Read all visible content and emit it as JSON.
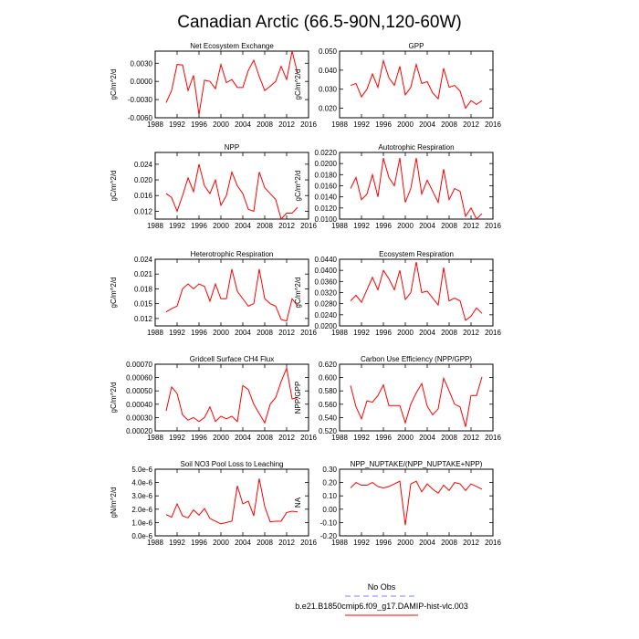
{
  "figure": {
    "title": "Canadian Arctic (66.5-90N,120-60W)"
  },
  "legend": {
    "entries": [
      {
        "label": "No Obs",
        "color": "#8080ff",
        "dash": true
      },
      {
        "label": "b.e21.B1850cmip6.f09_g17.DAMIP-hist-vlc.003",
        "color": "#ff0000",
        "dash": false
      }
    ]
  },
  "chart_data": [
    {
      "type": "line",
      "title": "Net Ecosystem Exchange",
      "ylabel": "gC/m^2/d",
      "xlim": [
        1988,
        2016
      ],
      "ylim": [
        -0.006,
        0.005
      ],
      "xticks": [
        1988,
        1992,
        1996,
        2000,
        2004,
        2008,
        2012,
        2016
      ],
      "yticks": [
        -0.006,
        -0.003,
        0.0,
        0.003
      ],
      "ytick_labels": [
        "-0.0060",
        "-0.0030",
        "0.0000",
        "0.0030"
      ],
      "x": [
        1990,
        1991,
        1992,
        1993,
        1994,
        1995,
        1996,
        1997,
        1998,
        1999,
        2000,
        2001,
        2002,
        2003,
        2004,
        2005,
        2006,
        2007,
        2008,
        2009,
        2010,
        2011,
        2012,
        2013,
        2014
      ],
      "series": [
        {
          "color": "#ff0000",
          "values": [
            -0.0035,
            -0.0015,
            0.0028,
            0.0027,
            -0.0015,
            0.001,
            -0.0055,
            0.0002,
            0.0,
            -0.0012,
            0.0028,
            -0.0002,
            0.0003,
            -0.001,
            -0.001,
            0.0018,
            0.0035,
            0.0008,
            -0.0015,
            -0.0008,
            0.0,
            0.0025,
            0.0003,
            0.005,
            0.0013
          ]
        }
      ]
    },
    {
      "type": "line",
      "title": "GPP",
      "ylabel": "gC/m^2/d",
      "xlim": [
        1988,
        2016
      ],
      "ylim": [
        0.015,
        0.05
      ],
      "xticks": [
        1988,
        1992,
        1996,
        2000,
        2004,
        2008,
        2012,
        2016
      ],
      "yticks": [
        0.02,
        0.03,
        0.04,
        0.05
      ],
      "ytick_labels": [
        "0.020",
        "0.030",
        "0.040",
        "0.050"
      ],
      "x": [
        1990,
        1991,
        1992,
        1993,
        1994,
        1995,
        1996,
        1997,
        1998,
        1999,
        2000,
        2001,
        2002,
        2003,
        2004,
        2005,
        2006,
        2007,
        2008,
        2009,
        2010,
        2011,
        2012,
        2013,
        2014
      ],
      "series": [
        {
          "color": "#ff0000",
          "values": [
            0.032,
            0.033,
            0.026,
            0.03,
            0.038,
            0.031,
            0.045,
            0.036,
            0.032,
            0.042,
            0.027,
            0.031,
            0.043,
            0.033,
            0.034,
            0.028,
            0.025,
            0.041,
            0.031,
            0.032,
            0.029,
            0.02,
            0.024,
            0.022,
            0.024
          ]
        }
      ]
    },
    {
      "type": "line",
      "title": "NPP",
      "ylabel": "gC/m^2/d",
      "xlim": [
        1988,
        2016
      ],
      "ylim": [
        0.01,
        0.027
      ],
      "xticks": [
        1988,
        1992,
        1996,
        2000,
        2004,
        2008,
        2012,
        2016
      ],
      "yticks": [
        0.012,
        0.016,
        0.02,
        0.024
      ],
      "ytick_labels": [
        "0.012",
        "0.016",
        "0.020",
        "0.024"
      ],
      "x": [
        1990,
        1991,
        1992,
        1993,
        1994,
        1995,
        1996,
        1997,
        1998,
        1999,
        2000,
        2001,
        2002,
        2003,
        2004,
        2005,
        2006,
        2007,
        2008,
        2009,
        2010,
        2011,
        2012,
        2013,
        2014
      ],
      "series": [
        {
          "color": "#ff0000",
          "values": [
            0.0165,
            0.0155,
            0.012,
            0.016,
            0.0205,
            0.017,
            0.024,
            0.0185,
            0.0165,
            0.02,
            0.0135,
            0.016,
            0.022,
            0.0185,
            0.0165,
            0.0125,
            0.012,
            0.022,
            0.018,
            0.0165,
            0.015,
            0.01,
            0.0115,
            0.0115,
            0.013
          ]
        }
      ]
    },
    {
      "type": "line",
      "title": "Autotrophic Respiration",
      "ylabel": "gC/m^2/d",
      "xlim": [
        1988,
        2016
      ],
      "ylim": [
        0.01,
        0.022
      ],
      "xticks": [
        1988,
        1992,
        1996,
        2000,
        2004,
        2008,
        2012,
        2016
      ],
      "yticks": [
        0.01,
        0.012,
        0.014,
        0.016,
        0.018,
        0.02,
        0.022
      ],
      "ytick_labels": [
        "0.0100",
        "0.0120",
        "0.0140",
        "0.0160",
        "0.0180",
        "0.0200",
        "0.0220"
      ],
      "x": [
        1990,
        1991,
        1992,
        1993,
        1994,
        1995,
        1996,
        1997,
        1998,
        1999,
        2000,
        2001,
        2002,
        2003,
        2004,
        2005,
        2006,
        2007,
        2008,
        2009,
        2010,
        2011,
        2012,
        2013,
        2014
      ],
      "series": [
        {
          "color": "#ff0000",
          "values": [
            0.0155,
            0.0175,
            0.0135,
            0.0145,
            0.018,
            0.014,
            0.021,
            0.0175,
            0.016,
            0.021,
            0.013,
            0.0155,
            0.021,
            0.0145,
            0.017,
            0.015,
            0.013,
            0.019,
            0.0135,
            0.0155,
            0.015,
            0.0105,
            0.012,
            0.01,
            0.011
          ]
        }
      ]
    },
    {
      "type": "line",
      "title": "Heterotrophic Respiration",
      "ylabel": "gC/m^2/d",
      "xlim": [
        1988,
        2016
      ],
      "ylim": [
        0.0105,
        0.024
      ],
      "xticks": [
        1988,
        1992,
        1996,
        2000,
        2004,
        2008,
        2012,
        2016
      ],
      "yticks": [
        0.012,
        0.015,
        0.018,
        0.021,
        0.024
      ],
      "ytick_labels": [
        "0.012",
        "0.015",
        "0.018",
        "0.021",
        "0.024"
      ],
      "x": [
        1990,
        1991,
        1992,
        1993,
        1994,
        1995,
        1996,
        1997,
        1998,
        1999,
        2000,
        2001,
        2002,
        2003,
        2004,
        2005,
        2006,
        2007,
        2008,
        2009,
        2010,
        2011,
        2012,
        2013,
        2014
      ],
      "series": [
        {
          "color": "#ff0000",
          "values": [
            0.0133,
            0.014,
            0.0145,
            0.018,
            0.019,
            0.018,
            0.019,
            0.0185,
            0.0155,
            0.019,
            0.016,
            0.016,
            0.022,
            0.0175,
            0.016,
            0.0145,
            0.015,
            0.022,
            0.016,
            0.015,
            0.0145,
            0.0118,
            0.0115,
            0.016,
            0.0145
          ]
        }
      ]
    },
    {
      "type": "line",
      "title": "Ecosystem Respiration",
      "ylabel": "gC/m^2/d",
      "xlim": [
        1988,
        2016
      ],
      "ylim": [
        0.02,
        0.044
      ],
      "xticks": [
        1988,
        1992,
        1996,
        2000,
        2004,
        2008,
        2012,
        2016
      ],
      "yticks": [
        0.02,
        0.024,
        0.028,
        0.032,
        0.036,
        0.04,
        0.044
      ],
      "ytick_labels": [
        "0.0200",
        "0.0240",
        "0.0280",
        "0.0320",
        "0.0360",
        "0.0400",
        "0.0440"
      ],
      "x": [
        1990,
        1991,
        1992,
        1993,
        1994,
        1995,
        1996,
        1997,
        1998,
        1999,
        2000,
        2001,
        2002,
        2003,
        2004,
        2005,
        2006,
        2007,
        2008,
        2009,
        2010,
        2011,
        2012,
        2013,
        2014
      ],
      "series": [
        {
          "color": "#ff0000",
          "values": [
            0.029,
            0.031,
            0.0285,
            0.033,
            0.0375,
            0.033,
            0.04,
            0.037,
            0.033,
            0.04,
            0.0295,
            0.032,
            0.043,
            0.032,
            0.0325,
            0.03,
            0.0275,
            0.041,
            0.029,
            0.03,
            0.029,
            0.022,
            0.0235,
            0.0265,
            0.0245
          ]
        }
      ]
    },
    {
      "type": "line",
      "title": "Gridcell Surface CH4 Flux",
      "ylabel": "gC/m^2/d",
      "xlim": [
        1988,
        2016
      ],
      "ylim": [
        0.0002,
        0.0007
      ],
      "xticks": [
        1988,
        1992,
        1996,
        2000,
        2004,
        2008,
        2012,
        2016
      ],
      "yticks": [
        0.0002,
        0.0003,
        0.0004,
        0.0005,
        0.0006,
        0.0007
      ],
      "ytick_labels": [
        "0.00020",
        "0.00030",
        "0.00040",
        "0.00050",
        "0.00060",
        "0.00070"
      ],
      "x": [
        1990,
        1991,
        1992,
        1993,
        1994,
        1995,
        1996,
        1997,
        1998,
        1999,
        2000,
        2001,
        2002,
        2003,
        2004,
        2005,
        2006,
        2007,
        2008,
        2009,
        2010,
        2011,
        2012,
        2013,
        2014
      ],
      "series": [
        {
          "color": "#ff0000",
          "values": [
            0.00035,
            0.00053,
            0.00048,
            0.00032,
            0.00028,
            0.0003,
            0.00027,
            0.0003,
            0.00038,
            0.00027,
            0.00031,
            0.00029,
            0.00031,
            0.00027,
            0.00054,
            0.00051,
            0.0004,
            0.00033,
            0.00026,
            0.0004,
            0.00045,
            0.00057,
            0.00067,
            0.00044,
            0.00045
          ]
        }
      ]
    },
    {
      "type": "line",
      "title": "Carbon Use Efficiency (NPP/GPP)",
      "ylabel": "NPP/GPP",
      "xlim": [
        1988,
        2016
      ],
      "ylim": [
        0.52,
        0.62
      ],
      "xticks": [
        1988,
        1992,
        1996,
        2000,
        2004,
        2008,
        2012,
        2016
      ],
      "yticks": [
        0.52,
        0.54,
        0.56,
        0.58,
        0.6,
        0.62
      ],
      "ytick_labels": [
        "0.520",
        "0.540",
        "0.560",
        "0.580",
        "0.600",
        "0.620"
      ],
      "x": [
        1990,
        1991,
        1992,
        1993,
        1994,
        1995,
        1996,
        1997,
        1998,
        1999,
        2000,
        2001,
        2002,
        2003,
        2004,
        2005,
        2006,
        2007,
        2008,
        2009,
        2010,
        2011,
        2012,
        2013,
        2014
      ],
      "series": [
        {
          "color": "#ff0000",
          "values": [
            0.588,
            0.556,
            0.538,
            0.565,
            0.563,
            0.573,
            0.589,
            0.558,
            0.558,
            0.558,
            0.532,
            0.56,
            0.577,
            0.591,
            0.557,
            0.544,
            0.553,
            0.599,
            0.58,
            0.56,
            0.556,
            0.526,
            0.573,
            0.573,
            0.601
          ]
        }
      ]
    },
    {
      "type": "line",
      "title": "Soil NO3 Pool Loss to Leaching",
      "ylabel": "gN/m^2/d",
      "xlim": [
        1988,
        2016
      ],
      "ylim": [
        0.0,
        5e-06
      ],
      "xticks": [
        1988,
        1992,
        1996,
        2000,
        2004,
        2008,
        2012,
        2016
      ],
      "yticks": [
        0.0,
        1e-06,
        2e-06,
        3e-06,
        4e-06,
        5e-06
      ],
      "ytick_labels": [
        "0.0e-6",
        "1.0e-6",
        "2.0e-6",
        "3.0e-6",
        "4.0e-6",
        "5.0e-6"
      ],
      "x": [
        1990,
        1991,
        1992,
        1993,
        1994,
        1995,
        1996,
        1997,
        1998,
        1999,
        2000,
        2001,
        2002,
        2003,
        2004,
        2005,
        2006,
        2007,
        2008,
        2009,
        2010,
        2011,
        2012,
        2013,
        2014
      ],
      "series": [
        {
          "color": "#ff0000",
          "values": [
            1.6e-06,
            1.4e-06,
            2.4e-06,
            1.5e-06,
            1.35e-06,
            1.95e-06,
            1.55e-06,
            2.05e-06,
            1.3e-06,
            1.1e-06,
            9e-07,
            1e-06,
            1.1e-06,
            3.75e-06,
            2.4e-06,
            2.6e-06,
            1.5e-06,
            4.3e-06,
            2.2e-06,
            1.05e-06,
            1.1e-06,
            1.1e-06,
            1.75e-06,
            1.85e-06,
            1.8e-06
          ]
        }
      ]
    },
    {
      "type": "line",
      "title": "NPP_NUPTAKE/(NPP_NUPTAKE+NPP)",
      "ylabel": "NA",
      "xlim": [
        1988,
        2016
      ],
      "ylim": [
        -0.2,
        0.3
      ],
      "xticks": [
        1988,
        1992,
        1996,
        2000,
        2004,
        2008,
        2012,
        2016
      ],
      "yticks": [
        -0.2,
        -0.1,
        0.0,
        0.1,
        0.2,
        0.3
      ],
      "ytick_labels": [
        "-0.20",
        "-0.10",
        "0.00",
        "0.10",
        "0.20",
        "0.30"
      ],
      "x": [
        1990,
        1991,
        1992,
        1993,
        1994,
        1995,
        1996,
        1997,
        1998,
        1999,
        2000,
        2001,
        2002,
        2003,
        2004,
        2005,
        2006,
        2007,
        2008,
        2009,
        2010,
        2011,
        2012,
        2013,
        2014
      ],
      "series": [
        {
          "color": "#ff0000",
          "values": [
            0.16,
            0.2,
            0.18,
            0.18,
            0.2,
            0.17,
            0.16,
            0.17,
            0.19,
            0.21,
            -0.12,
            0.19,
            0.21,
            0.13,
            0.19,
            0.15,
            0.12,
            0.18,
            0.14,
            0.2,
            0.19,
            0.14,
            0.19,
            0.17,
            0.15
          ]
        }
      ]
    }
  ]
}
